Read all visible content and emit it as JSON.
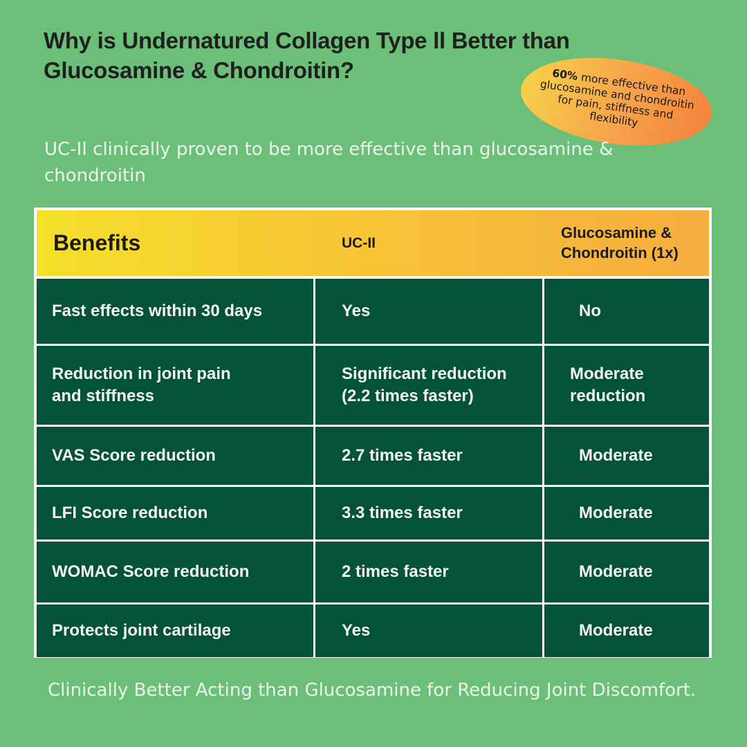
{
  "title": "Why is Undernatured Collagen Type ll Better than Glucosamine & Chondroitin?",
  "badge": {
    "highlight": "60%",
    "text": " more effective than glucosamine and chondroitin for pain, stiffness and flexibility"
  },
  "subtitle": "UC-II clinically proven to be more effective than glucosamine & chondroitin",
  "table": {
    "headers": [
      "Benefits",
      "UC-II",
      "Glucosamine & Chondroitin (1x)"
    ],
    "rows": [
      [
        "Fast effects within 30 days",
        "Yes",
        "No"
      ],
      [
        "Reduction in joint pain and stiffness",
        "Significant reduction (2.2 times faster)",
        "Moderate reduction"
      ],
      [
        "VAS Score reduction",
        "2.7 times faster",
        "Moderate"
      ],
      [
        "LFI Score reduction",
        "3.3 times faster",
        "Moderate"
      ],
      [
        "WOMAC Score reduction",
        "2 times faster",
        "Moderate"
      ],
      [
        "Protects joint cartilage",
        "Yes",
        "Moderate"
      ]
    ]
  },
  "footer": "Clinically Better Acting than Glucosamine for Reducing Joint Discomfort.",
  "colors": {
    "background": "#6bbf78",
    "row_fill": "#05523a",
    "header_gradient_start": "#f5e02a",
    "header_gradient_end": "#f6ad3e",
    "badge_gradient_start": "#f7d34a",
    "badge_gradient_end": "#f2823a"
  }
}
